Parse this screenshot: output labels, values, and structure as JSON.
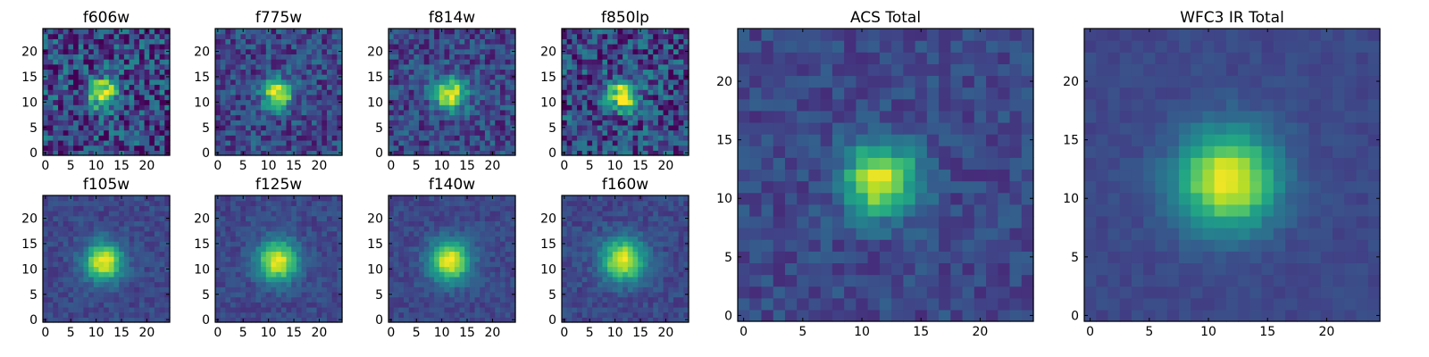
{
  "chart_data": [
    {
      "type": "heatmap",
      "title": "f606w",
      "source_center": [
        11.5,
        11.8
      ],
      "sigma": 2.0,
      "peak": 1.0,
      "noise": 0.35,
      "seed": 606,
      "xlim": [
        0,
        24
      ],
      "ylim": [
        0,
        24
      ],
      "xticks": [
        0,
        5,
        10,
        15,
        20
      ],
      "yticks": [
        0,
        5,
        10,
        15,
        20
      ],
      "colormap": "viridis"
    },
    {
      "type": "heatmap",
      "title": "f775w",
      "source_center": [
        11.8,
        11.6
      ],
      "sigma": 2.0,
      "peak": 1.0,
      "noise": 0.22,
      "seed": 775,
      "xlim": [
        0,
        24
      ],
      "ylim": [
        0,
        24
      ],
      "xticks": [
        0,
        5,
        10,
        15,
        20
      ],
      "yticks": [
        0,
        5,
        10,
        15,
        20
      ],
      "colormap": "viridis"
    },
    {
      "type": "heatmap",
      "title": "f814w",
      "source_center": [
        11.6,
        11.6
      ],
      "sigma": 2.2,
      "peak": 1.0,
      "noise": 0.22,
      "seed": 814,
      "xlim": [
        0,
        24
      ],
      "ylim": [
        0,
        24
      ],
      "xticks": [
        0,
        5,
        10,
        15,
        20
      ],
      "yticks": [
        0,
        5,
        10,
        15,
        20
      ],
      "colormap": "viridis"
    },
    {
      "type": "heatmap",
      "title": "f850lp",
      "source_center": [
        11.5,
        11.4
      ],
      "sigma": 2.1,
      "peak": 1.0,
      "noise": 0.32,
      "seed": 850,
      "xlim": [
        0,
        24
      ],
      "ylim": [
        0,
        24
      ],
      "xticks": [
        0,
        5,
        10,
        15,
        20
      ],
      "yticks": [
        0,
        5,
        10,
        15,
        20
      ],
      "colormap": "viridis"
    },
    {
      "type": "heatmap",
      "title": "f105w",
      "source_center": [
        11.5,
        11.5
      ],
      "sigma": 2.6,
      "peak": 1.0,
      "noise": 0.1,
      "seed": 105,
      "xlim": [
        0,
        24
      ],
      "ylim": [
        0,
        24
      ],
      "xticks": [
        0,
        5,
        10,
        15,
        20
      ],
      "yticks": [
        0,
        5,
        10,
        15,
        20
      ],
      "colormap": "viridis"
    },
    {
      "type": "heatmap",
      "title": "f125w",
      "source_center": [
        11.8,
        11.6
      ],
      "sigma": 2.8,
      "peak": 1.0,
      "noise": 0.1,
      "seed": 125,
      "xlim": [
        0,
        24
      ],
      "ylim": [
        0,
        24
      ],
      "xticks": [
        0,
        5,
        10,
        15,
        20
      ],
      "yticks": [
        0,
        5,
        10,
        15,
        20
      ],
      "colormap": "viridis"
    },
    {
      "type": "heatmap",
      "title": "f140w",
      "source_center": [
        11.6,
        11.6
      ],
      "sigma": 2.8,
      "peak": 1.0,
      "noise": 0.09,
      "seed": 140,
      "xlim": [
        0,
        24
      ],
      "ylim": [
        0,
        24
      ],
      "xticks": [
        0,
        5,
        10,
        15,
        20
      ],
      "yticks": [
        0,
        5,
        10,
        15,
        20
      ],
      "colormap": "viridis"
    },
    {
      "type": "heatmap",
      "title": "f160w",
      "source_center": [
        11.6,
        11.8
      ],
      "sigma": 2.9,
      "peak": 1.0,
      "noise": 0.1,
      "seed": 160,
      "xlim": [
        0,
        24
      ],
      "ylim": [
        0,
        24
      ],
      "xticks": [
        0,
        5,
        10,
        15,
        20
      ],
      "yticks": [
        0,
        5,
        10,
        15,
        20
      ],
      "colormap": "viridis"
    },
    {
      "type": "heatmap",
      "title": "ACS Total",
      "source_center": [
        11.6,
        11.6
      ],
      "sigma": 2.1,
      "peak": 1.0,
      "noise": 0.12,
      "seed": 900,
      "xlim": [
        0,
        24
      ],
      "ylim": [
        0,
        24
      ],
      "xticks": [
        0,
        5,
        10,
        15,
        20
      ],
      "yticks": [
        0,
        5,
        10,
        15,
        20
      ],
      "colormap": "viridis"
    },
    {
      "type": "heatmap",
      "title": "WFC3 IR Total",
      "source_center": [
        11.6,
        11.6
      ],
      "sigma": 2.9,
      "peak": 1.0,
      "noise": 0.05,
      "seed": 901,
      "xlim": [
        0,
        24
      ],
      "ylim": [
        0,
        24
      ],
      "xticks": [
        0,
        5,
        10,
        15,
        20
      ],
      "yticks": [
        0,
        5,
        10,
        15,
        20
      ],
      "colormap": "viridis"
    }
  ]
}
